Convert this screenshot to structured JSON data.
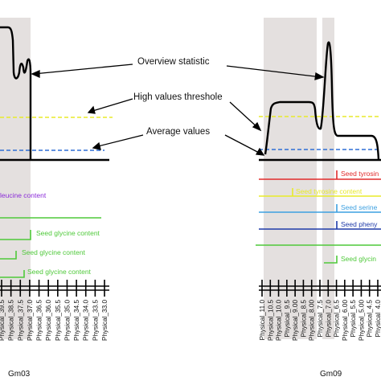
{
  "annotations": {
    "overview": "Overview statistic",
    "threshold": "High values threshole",
    "average": "Average values"
  },
  "colors": {
    "threshold": "#e8ea2a",
    "average": "#2f6fd6",
    "highlight": "#e4e0df",
    "curve": "#000000"
  },
  "left_panel": {
    "chromosome": "Gm03",
    "traits": [
      {
        "label": "leucine content",
        "color": "#8a2bd8"
      },
      {
        "label": "Seed glycine content",
        "color": "#4fc93a"
      },
      {
        "label": "Seed glycine content",
        "color": "#4fc93a"
      },
      {
        "label": "Seed glycine content",
        "color": "#4fc93a"
      }
    ],
    "markers": [
      "Physical_39.5",
      "Physical_38.5",
      "Physical_37.5",
      "Physical_37.0",
      "Physical_36.5",
      "Physical_36.0",
      "Physical_35.5",
      "Physical_35.0",
      "Physical_34.5",
      "Physical_34.0",
      "Physical_33.5",
      "Physical_33.0"
    ]
  },
  "right_panel": {
    "chromosome": "Gm09",
    "traits": [
      {
        "label": "Seed tyrosin",
        "color": "#e12b2b"
      },
      {
        "label": "Seed tyrosine content",
        "color": "#e8ea2a"
      },
      {
        "label": "Seed serine",
        "color": "#3da0e0"
      },
      {
        "label": "Seed pheny",
        "color": "#1e3aa8"
      },
      {
        "label": "Seed glycin",
        "color": "#4fc93a"
      }
    ],
    "markers": [
      "Physical_11.0",
      "Physical_10.5",
      "Physical_10.0",
      "Physical_9.5",
      "Physical_9.00",
      "Physical_8.5",
      "Physical_8.00",
      "Physical_7.5",
      "Physical_7.0",
      "Physical_6.5",
      "Physical_6.00",
      "Physical_5.5",
      "Physical_5.00",
      "Physical_4.5",
      "Physical_4.0"
    ]
  }
}
